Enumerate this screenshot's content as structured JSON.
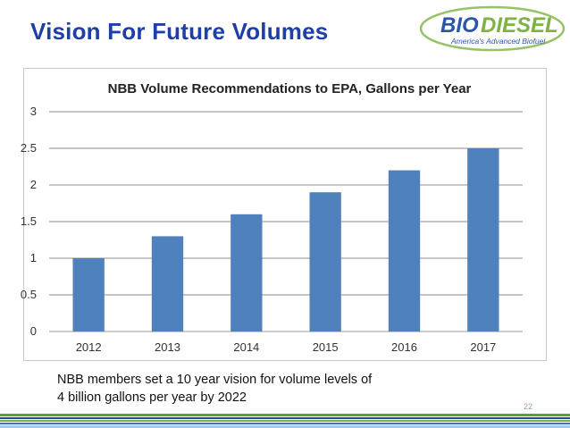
{
  "slide": {
    "title": "Vision For Future Volumes",
    "page_number": "22",
    "note_lines": [
      "NBB members set a 10 year vision for volume levels of",
      "4 billion gallons per year by 2022"
    ]
  },
  "logo": {
    "text_part1": "BIO",
    "text_part2": "DIESEL",
    "tagline": "America's Advanced Biofuel"
  },
  "colors": {
    "title": "#1f3fa8",
    "bar": "#4f81bd",
    "logo_blue": "#2c56a8",
    "logo_green": "#7cb342",
    "footer_green": "#5aa02c",
    "footer_blue": "#1f4e9c"
  },
  "chart_data": {
    "type": "bar",
    "title": "NBB Volume Recommendations to EPA, Gallons per Year",
    "categories": [
      "2012",
      "2013",
      "2014",
      "2015",
      "2016",
      "2017"
    ],
    "values": [
      1.0,
      1.3,
      1.6,
      1.9,
      2.2,
      2.5
    ],
    "ylim": [
      0,
      3
    ],
    "yticks": [
      "0",
      "0.5",
      "1",
      "1.5",
      "2",
      "2.5",
      "3"
    ],
    "xlabel": "",
    "ylabel": "",
    "grid": true,
    "legend": "none"
  }
}
